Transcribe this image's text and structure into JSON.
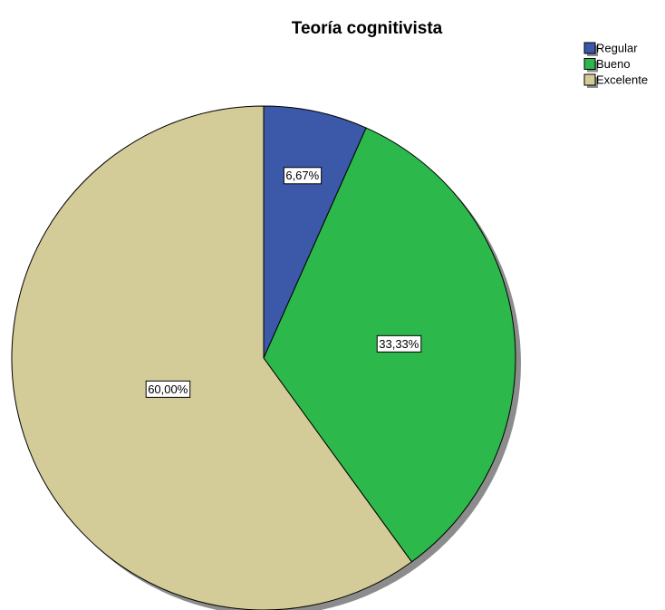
{
  "chart_data": {
    "type": "pie",
    "title": "Teoría cognitivista",
    "categories": [
      "Regular",
      "Bueno",
      "Excelente"
    ],
    "values": [
      6.67,
      33.33,
      60.0
    ],
    "value_labels": [
      "6,67%",
      "33,33%",
      "60,00%"
    ],
    "colors": [
      "#3c58a8",
      "#2db84b",
      "#d4cc98"
    ],
    "legend": "top-right"
  }
}
